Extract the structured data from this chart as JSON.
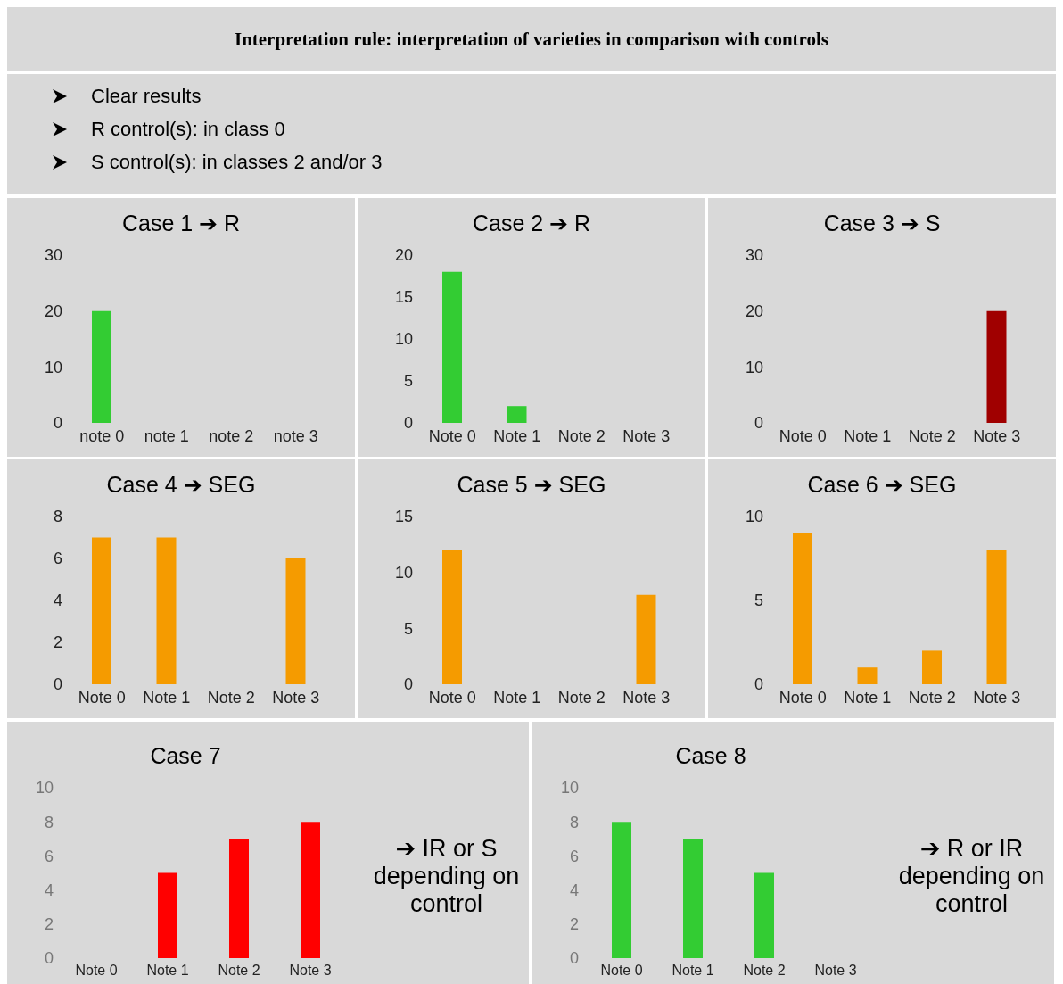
{
  "chart_data": [
    {
      "type": "other",
      "title": "Interpretation rule: interpretation of varieties in comparison with controls",
      "annotations": [
        "Clear results",
        "R control(s): in class 0",
        "S control(s): in classes 2 and/or 3"
      ]
    },
    {
      "type": "bar",
      "title": "Case 1 ➔ R",
      "categories": [
        "note 0",
        "note 1",
        "note 2",
        "note 3"
      ],
      "values": [
        20,
        0,
        0,
        0
      ],
      "color": "#33cc33",
      "ylim": [
        0,
        30
      ],
      "yticks": [
        0,
        10,
        20,
        30
      ]
    },
    {
      "type": "bar",
      "title": "Case 2 ➔ R",
      "categories": [
        "Note 0",
        "Note 1",
        "Note 2",
        "Note 3"
      ],
      "values": [
        18,
        2,
        0,
        0
      ],
      "color": "#33cc33",
      "ylim": [
        0,
        20
      ],
      "yticks": [
        0,
        5,
        10,
        15,
        20
      ]
    },
    {
      "type": "bar",
      "title": "Case 3 ➔ S",
      "categories": [
        "Note 0",
        "Note 1",
        "Note 2",
        "Note 3"
      ],
      "values": [
        0,
        0,
        0,
        20
      ],
      "color": "#a00000",
      "ylim": [
        0,
        30
      ],
      "yticks": [
        0,
        10,
        20,
        30
      ]
    },
    {
      "type": "bar",
      "title": "Case 4 ➔ SEG",
      "categories": [
        "Note 0",
        "Note 1",
        "Note 2",
        "Note 3"
      ],
      "values": [
        7,
        7,
        0,
        6
      ],
      "color": "#f59b00",
      "ylim": [
        0,
        8
      ],
      "yticks": [
        0,
        2,
        4,
        6,
        8
      ]
    },
    {
      "type": "bar",
      "title": "Case 5 ➔ SEG",
      "categories": [
        "Note 0",
        "Note 1",
        "Note 2",
        "Note 3"
      ],
      "values": [
        12,
        0,
        0,
        8
      ],
      "color": "#f59b00",
      "ylim": [
        0,
        15
      ],
      "yticks": [
        0,
        5,
        10,
        15
      ]
    },
    {
      "type": "bar",
      "title": "Case 6 ➔ SEG",
      "categories": [
        "Note 0",
        "Note 1",
        "Note 2",
        "Note 3"
      ],
      "values": [
        9,
        1,
        2,
        8
      ],
      "color": "#f59b00",
      "ylim": [
        0,
        10
      ],
      "yticks": [
        0,
        5,
        10
      ]
    },
    {
      "type": "bar",
      "title": "Case 7",
      "categories": [
        "Note 0",
        "Note 1",
        "Note 2",
        "Note 3"
      ],
      "values": [
        0,
        5,
        7,
        8
      ],
      "color": "#ff0000",
      "ylim": [
        0,
        10
      ],
      "yticks": [
        0,
        2,
        4,
        6,
        8,
        10
      ],
      "annotations": [
        "➔ IR or S depending on control"
      ]
    },
    {
      "type": "bar",
      "title": "Case 8",
      "categories": [
        "Note 0",
        "Note 1",
        "Note 2",
        "Note 3"
      ],
      "values": [
        8,
        7,
        5,
        0
      ],
      "color": "#33cc33",
      "ylim": [
        0,
        10
      ],
      "yticks": [
        0,
        2,
        4,
        6,
        8,
        10
      ],
      "annotations": [
        "➔ R or IR depending on control"
      ]
    }
  ]
}
